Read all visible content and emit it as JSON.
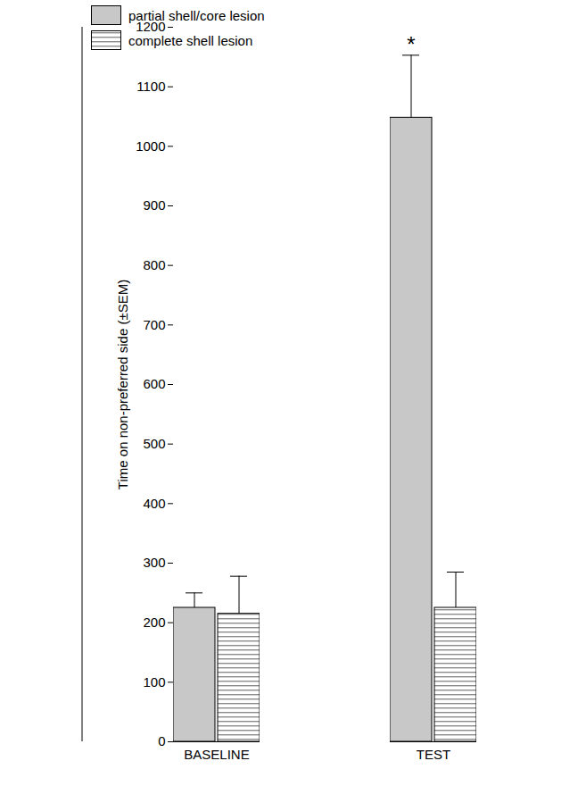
{
  "chart_data": {
    "type": "bar",
    "categories": [
      "BASELINE",
      "TEST"
    ],
    "series": [
      {
        "name": "partial shell/core lesion",
        "color": "#c8c8c8",
        "values": [
          225,
          1048
        ],
        "errors": [
          25,
          105
        ]
      },
      {
        "name": "complete shell lesion",
        "color": "#8c8c8c",
        "values": [
          215,
          225
        ],
        "errors": [
          63,
          60
        ]
      }
    ],
    "y_label": "Time on non-preferred side (±SEM)",
    "ylim": [
      0,
      1200
    ],
    "yticks": [
      0,
      100,
      200,
      300,
      400,
      500,
      600,
      700,
      800,
      900,
      1000,
      1100,
      1200
    ],
    "legend": "top-left",
    "grid": false,
    "annotations": [
      {
        "text": "*",
        "category": "TEST",
        "series": "partial shell/core lesion"
      }
    ]
  }
}
